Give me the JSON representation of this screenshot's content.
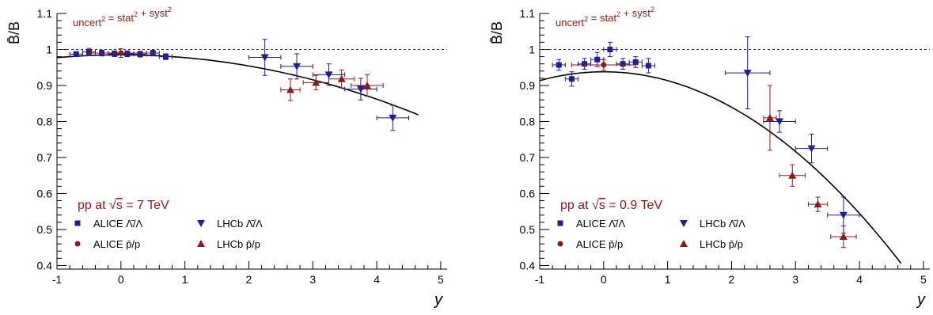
{
  "colors": {
    "alice": "#1f1f8f",
    "lhcb_lambda": "#1f1f8f",
    "proton": "#8b1a1a",
    "annotation": "#8b1a1a",
    "axis": "#000000",
    "curve": "#000000"
  },
  "chart_data": [
    {
      "type": "scatter",
      "ylabel": "B̄/B",
      "xlabel": "y",
      "xlim": [
        -1,
        5.1
      ],
      "ylim": [
        0.39,
        1.1
      ],
      "xticks": [
        "-1",
        "0",
        "1",
        "2",
        "3",
        "4",
        "5"
      ],
      "yticks": [
        "0.4",
        "0.5",
        "0.6",
        "0.7",
        "0.8",
        "0.9",
        "1",
        "1.1"
      ],
      "reference_line": 1.0,
      "formula": {
        "base": "uncert",
        "sup1": "2",
        "eq": " = stat",
        "sup2": "2",
        "plus": " + syst",
        "sup3": "2"
      },
      "energy_label": {
        "prefix": "pp at ",
        "sqrt": "√",
        "s": "s",
        "value": " = 7 TeV"
      },
      "legend": [
        "ALICE Λ̄/Λ",
        "LHCb Λ̄/Λ",
        "ALICE p̄/p",
        "LHCb p̄/p"
      ],
      "fit_curve": {
        "a": 0.985,
        "b": 0.0077,
        "x_end": 4.65
      },
      "series": [
        {
          "name": "ALICE Λ̄/Λ",
          "marker": "square",
          "points": [
            [
              -0.7,
              0.987,
              0.1,
              0.007
            ],
            [
              -0.5,
              0.993,
              0.1,
              0.01
            ],
            [
              -0.3,
              0.99,
              0.1,
              0.008
            ],
            [
              -0.1,
              0.988,
              0.1,
              0.008
            ],
            [
              0.1,
              0.988,
              0.1,
              0.008
            ],
            [
              0.3,
              0.987,
              0.1,
              0.008
            ],
            [
              0.5,
              0.99,
              0.1,
              0.008
            ],
            [
              0.7,
              0.98,
              0.1,
              0.008
            ]
          ]
        },
        {
          "name": "ALICE p̄/p",
          "marker": "circle",
          "points": [
            [
              0.0,
              0.99,
              0.5,
              0.012
            ]
          ]
        },
        {
          "name": "LHCb Λ̄/Λ",
          "marker": "tri-down",
          "points": [
            [
              2.25,
              0.978,
              0.25,
              0.05
            ],
            [
              2.75,
              0.953,
              0.25,
              0.035
            ],
            [
              3.25,
              0.93,
              0.25,
              0.03
            ],
            [
              3.75,
              0.89,
              0.25,
              0.03
            ],
            [
              4.25,
              0.81,
              0.25,
              0.035
            ]
          ]
        },
        {
          "name": "LHCb p̄/p",
          "marker": "tri-up",
          "points": [
            [
              2.65,
              0.888,
              0.15,
              0.03
            ],
            [
              3.05,
              0.908,
              0.2,
              0.02
            ],
            [
              3.45,
              0.918,
              0.2,
              0.025
            ],
            [
              3.85,
              0.9,
              0.25,
              0.03
            ]
          ]
        }
      ]
    },
    {
      "type": "scatter",
      "ylabel": "B̄/B",
      "xlabel": "y",
      "xlim": [
        -1,
        5.1
      ],
      "ylim": [
        0.39,
        1.1
      ],
      "xticks": [
        "-1",
        "0",
        "1",
        "2",
        "3",
        "4",
        "5"
      ],
      "yticks": [
        "0.4",
        "0.5",
        "0.6",
        "0.7",
        "0.8",
        "0.9",
        "1",
        "1.1"
      ],
      "reference_line": 1.0,
      "formula": {
        "base": "uncert",
        "sup1": "2",
        "eq": " = stat",
        "sup2": "2",
        "plus": " + syst",
        "sup3": "2"
      },
      "energy_label": {
        "prefix": "pp at ",
        "sqrt": "√",
        "s": "s",
        "value": " = 0.9 TeV"
      },
      "legend": [
        "ALICE Λ̄/Λ",
        "LHCb Λ̄/Λ",
        "ALICE p̄/p",
        "LHCb p̄/p"
      ],
      "fit_curve": {
        "a": 0.938,
        "b": 0.0246,
        "x_end": 4.65
      },
      "series": [
        {
          "name": "ALICE Λ̄/Λ",
          "marker": "square",
          "points": [
            [
              -0.7,
              0.957,
              0.1,
              0.015
            ],
            [
              -0.5,
              0.918,
              0.1,
              0.02
            ],
            [
              -0.3,
              0.96,
              0.1,
              0.015
            ],
            [
              -0.1,
              0.972,
              0.1,
              0.02
            ],
            [
              0.1,
              1.0,
              0.1,
              0.02
            ],
            [
              0.3,
              0.96,
              0.1,
              0.015
            ],
            [
              0.5,
              0.965,
              0.1,
              0.015
            ],
            [
              0.7,
              0.955,
              0.1,
              0.02
            ]
          ]
        },
        {
          "name": "ALICE p̄/p",
          "marker": "circle",
          "points": [
            [
              0.0,
              0.957,
              0.5,
              0.015
            ]
          ]
        },
        {
          "name": "LHCb Λ̄/Λ",
          "marker": "tri-down",
          "points": [
            [
              2.25,
              0.935,
              0.35,
              0.1
            ],
            [
              2.75,
              0.8,
              0.25,
              0.03
            ],
            [
              3.25,
              0.725,
              0.25,
              0.04
            ],
            [
              3.75,
              0.54,
              0.25,
              0.05
            ]
          ]
        },
        {
          "name": "LHCb p̄/p",
          "marker": "tri-up",
          "points": [
            [
              2.6,
              0.81,
              0.1,
              0.09
            ],
            [
              2.95,
              0.65,
              0.2,
              0.03
            ],
            [
              3.35,
              0.57,
              0.15,
              0.02
            ],
            [
              3.75,
              0.48,
              0.2,
              0.03
            ]
          ]
        }
      ]
    }
  ]
}
